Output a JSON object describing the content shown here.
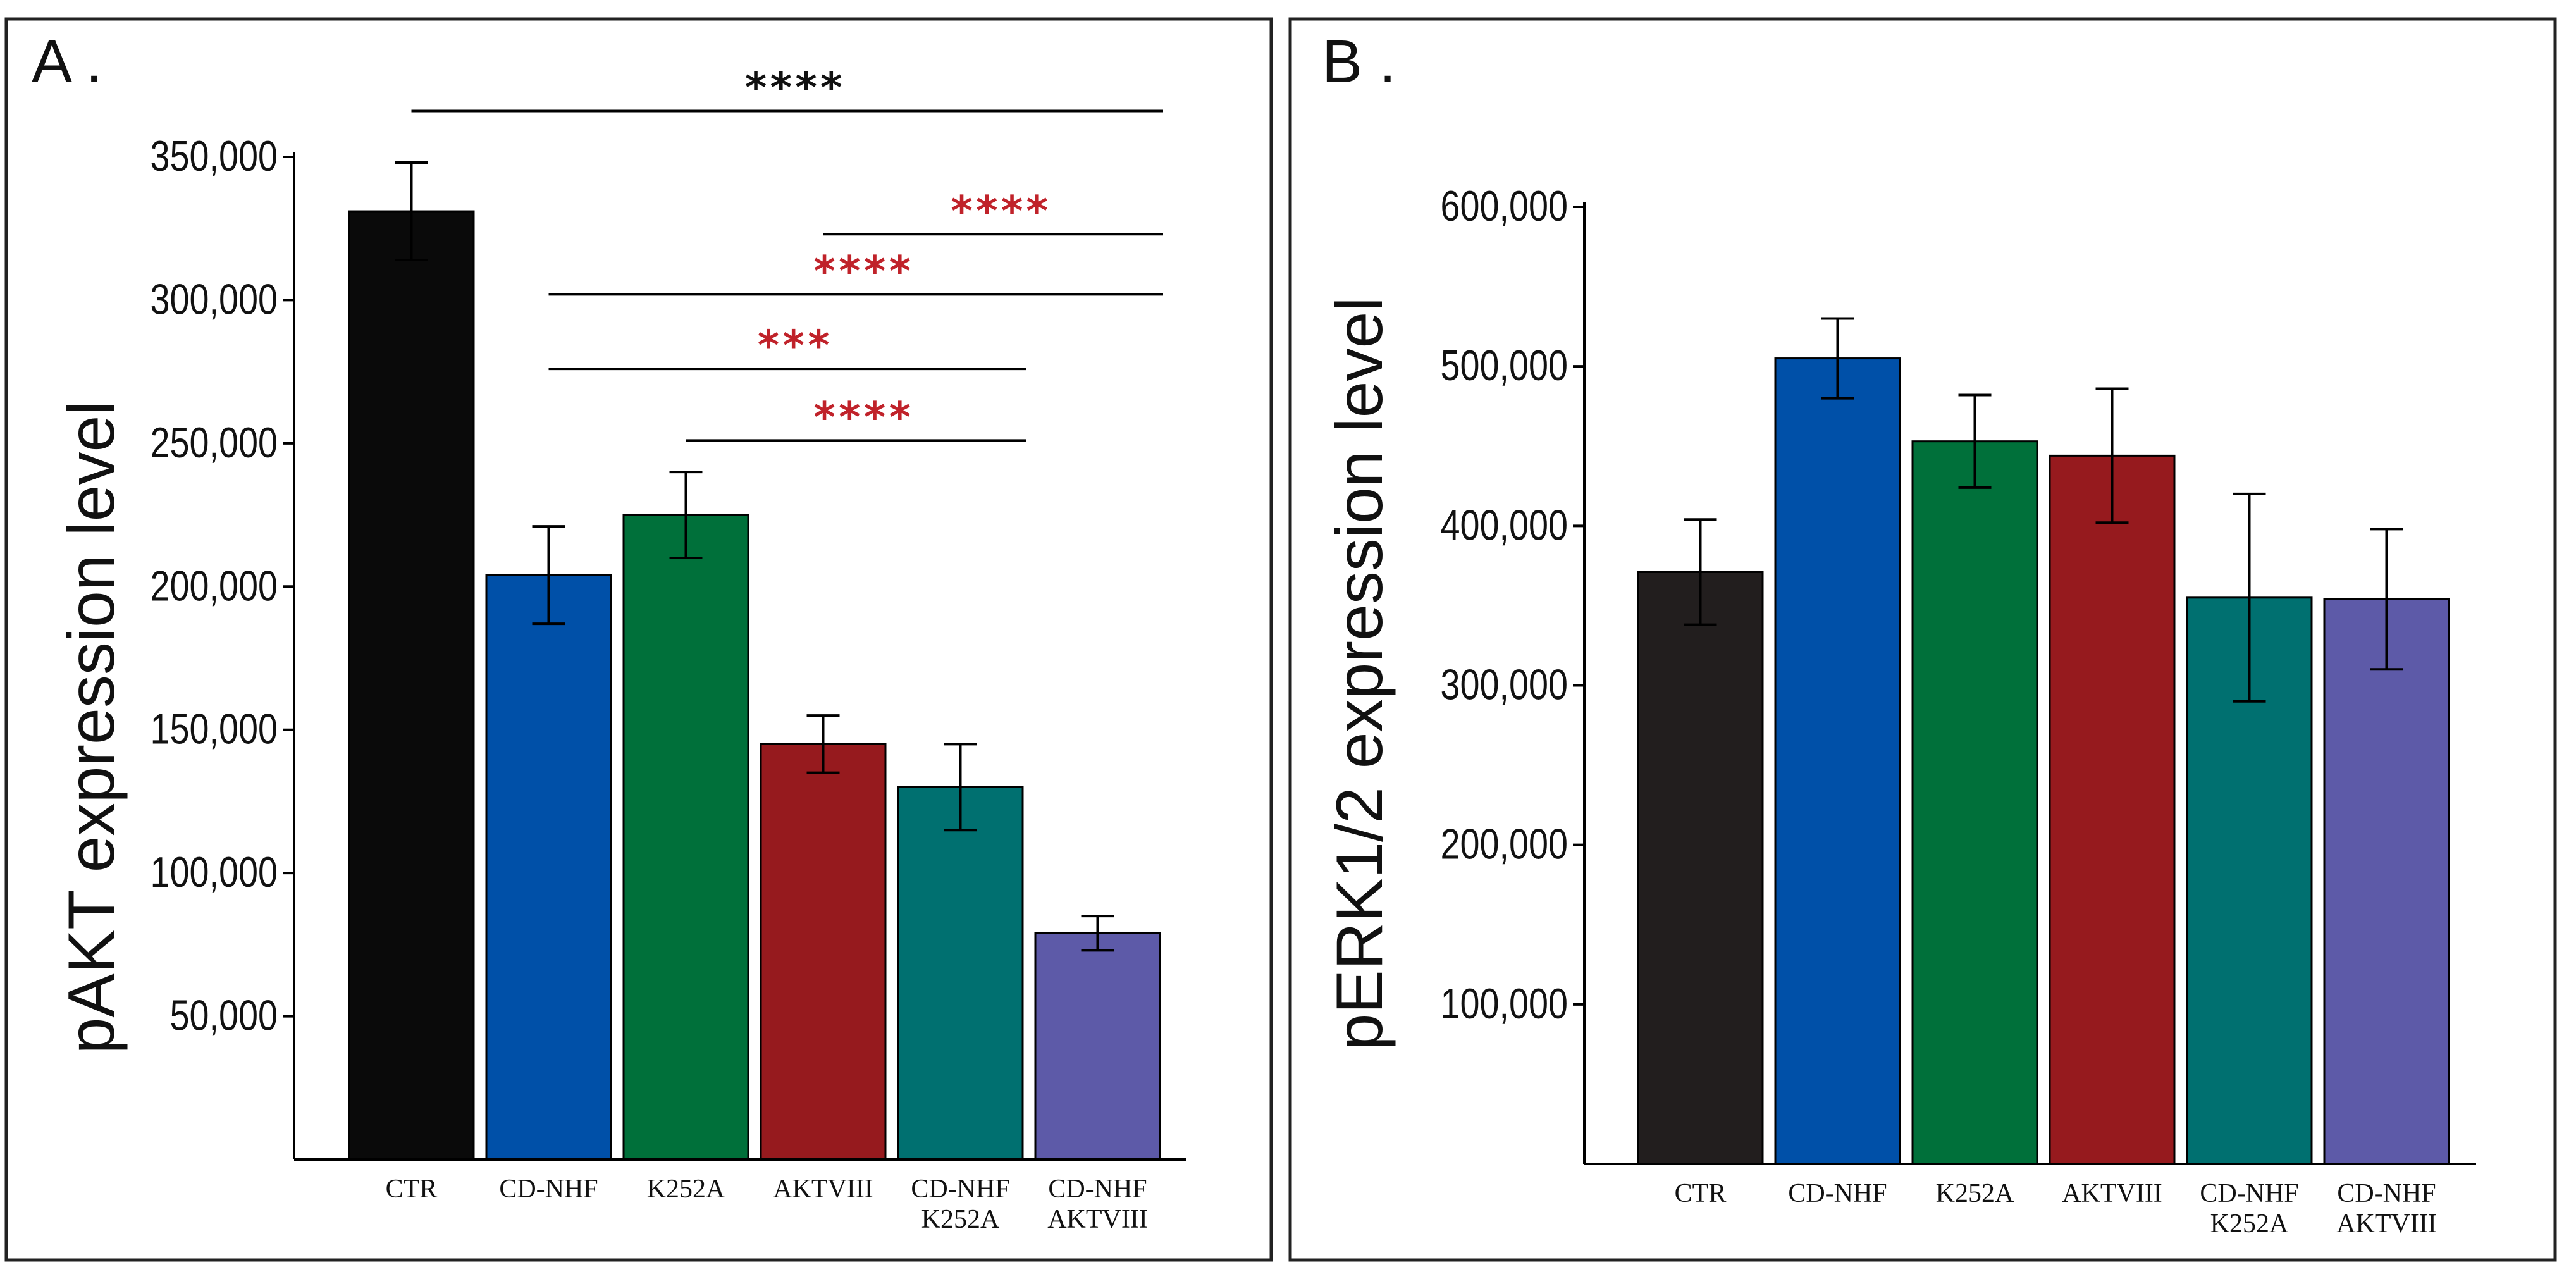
{
  "chart_data": [
    {
      "type": "bar",
      "panel_label": "A .",
      "ylabel": "pAKT expression level",
      "ylim": [
        0,
        350000
      ],
      "yticks": [
        50000,
        100000,
        150000,
        200000,
        250000,
        300000,
        350000
      ],
      "ytick_labels": [
        "50,000",
        "100,000",
        "150,000",
        "200,000",
        "250,000",
        "300,000",
        "350,000"
      ],
      "categories": [
        {
          "line1": "CTR",
          "line2": ""
        },
        {
          "line1": "CD-NHF",
          "line2": ""
        },
        {
          "line1": "K252A",
          "line2": ""
        },
        {
          "line1": "AKTVIII",
          "line2": ""
        },
        {
          "line1": "CD-NHF",
          "line2": "K252A"
        },
        {
          "line1": "CD-NHF",
          "line2": "AKTVIII"
        }
      ],
      "values": [
        331000,
        204000,
        225000,
        145000,
        130000,
        79000
      ],
      "errors": [
        17000,
        17000,
        15000,
        10000,
        15000,
        6000
      ],
      "colors": [
        "#0a0a0a",
        "#0050a8",
        "#00703a",
        "#961a1e",
        "#007070",
        "#5d5aa8"
      ],
      "grid": false,
      "significance": [
        {
          "from": 0,
          "to": 5,
          "level": 366000,
          "label": "****",
          "color": "#111111"
        },
        {
          "from": 3,
          "to": 5,
          "level": 323000,
          "label": "****",
          "color": "#c0222a"
        },
        {
          "from": 1,
          "to": 5,
          "level": 302000,
          "label": "****",
          "color": "#c0222a"
        },
        {
          "from": 1,
          "to": 4,
          "level": 276000,
          "label": "***",
          "color": "#c0222a"
        },
        {
          "from": 2,
          "to": 4,
          "level": 251000,
          "label": "****",
          "color": "#c0222a"
        }
      ]
    },
    {
      "type": "bar",
      "panel_label": "B .",
      "ylabel": "pERK1/2 expression level",
      "ylim": [
        0,
        600000
      ],
      "yticks": [
        100000,
        200000,
        300000,
        400000,
        500000,
        600000
      ],
      "ytick_labels": [
        "100,000",
        "200,000",
        "300,000",
        "400,000",
        "500,000",
        "600,000"
      ],
      "categories": [
        {
          "line1": "CTR",
          "line2": ""
        },
        {
          "line1": "CD-NHF",
          "line2": ""
        },
        {
          "line1": "K252A",
          "line2": ""
        },
        {
          "line1": "AKTVIII",
          "line2": ""
        },
        {
          "line1": "CD-NHF",
          "line2": "K252A"
        },
        {
          "line1": "CD-NHF",
          "line2": "AKTVIII"
        }
      ],
      "values": [
        371000,
        505000,
        453000,
        444000,
        355000,
        354000
      ],
      "errors": [
        33000,
        25000,
        29000,
        42000,
        65000,
        44000
      ],
      "colors": [
        "#221e1e",
        "#0050a8",
        "#00703a",
        "#961a1e",
        "#007070",
        "#5d5aa8"
      ],
      "grid": false,
      "significance": []
    }
  ]
}
